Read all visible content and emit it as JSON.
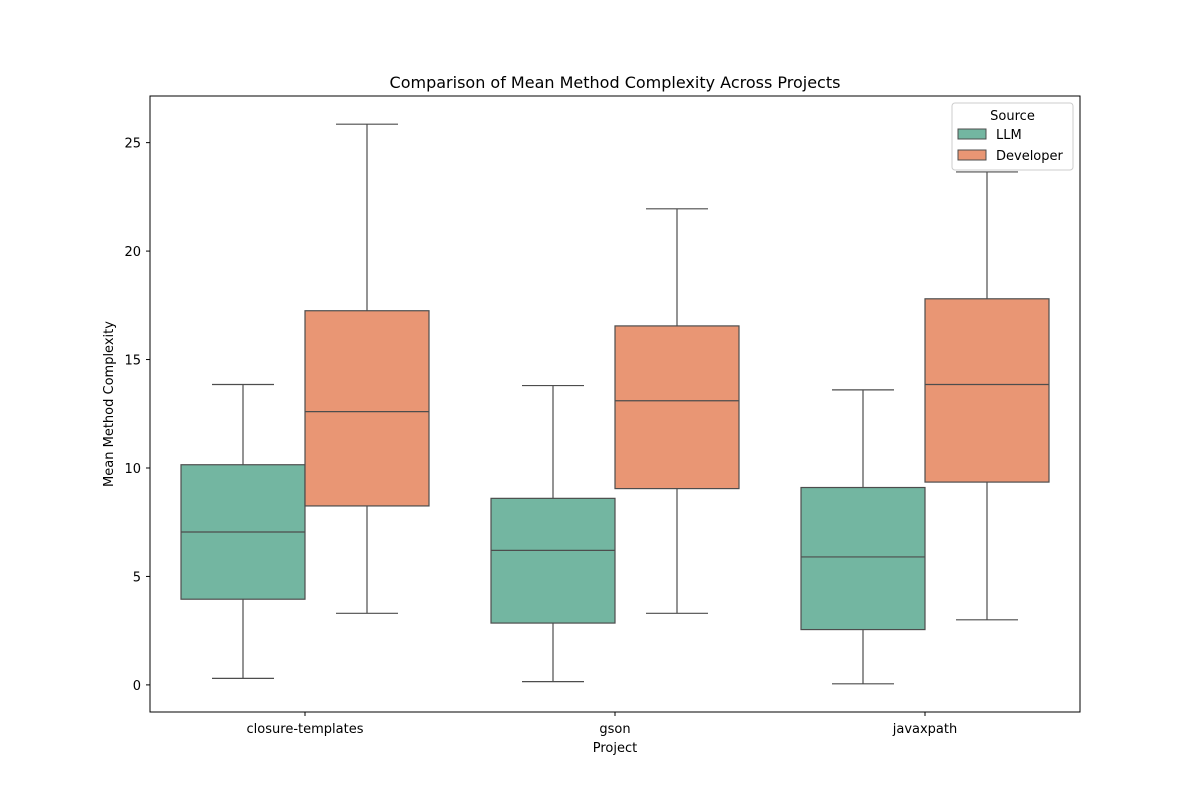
{
  "chart_data": {
    "type": "box",
    "title": "Comparison of Mean Method Complexity Across Projects",
    "xlabel": "Project",
    "ylabel": "Mean Method Complexity",
    "categories": [
      "closure-templates",
      "gson",
      "javaxpath"
    ],
    "ylim": [
      -1.25,
      27.15
    ],
    "yticks": [
      0,
      5,
      10,
      15,
      20,
      25
    ],
    "grid": false,
    "legend": {
      "title": "Source",
      "position": "top-right"
    },
    "series": [
      {
        "name": "LLM",
        "color": "#73b6a1",
        "boxes": [
          {
            "whisker_low": 0.3,
            "q1": 3.95,
            "median": 7.05,
            "q3": 10.15,
            "whisker_high": 13.85
          },
          {
            "whisker_low": 0.15,
            "q1": 2.85,
            "median": 6.2,
            "q3": 8.6,
            "whisker_high": 13.8
          },
          {
            "whisker_low": 0.05,
            "q1": 2.55,
            "median": 5.9,
            "q3": 9.1,
            "whisker_high": 13.6
          }
        ]
      },
      {
        "name": "Developer",
        "color": "#e99674",
        "boxes": [
          {
            "whisker_low": 3.3,
            "q1": 8.25,
            "median": 12.6,
            "q3": 17.25,
            "whisker_high": 25.85
          },
          {
            "whisker_low": 3.3,
            "q1": 9.05,
            "median": 13.1,
            "q3": 16.55,
            "whisker_high": 21.95
          },
          {
            "whisker_low": 3.0,
            "q1": 9.35,
            "median": 13.85,
            "q3": 17.8,
            "whisker_high": 23.65
          }
        ]
      }
    ]
  }
}
